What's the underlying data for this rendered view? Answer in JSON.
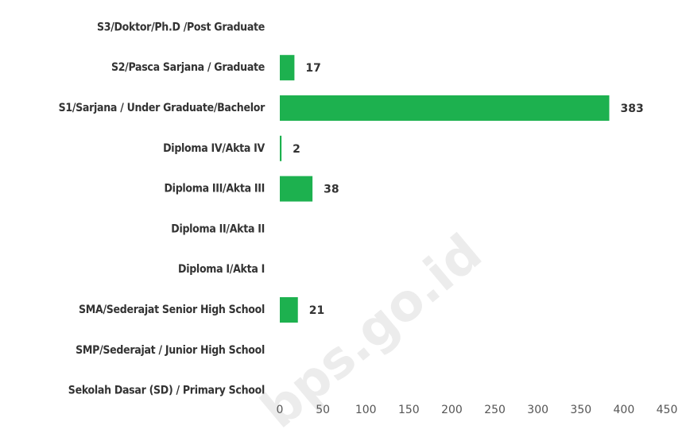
{
  "chart_data": {
    "type": "barh",
    "categories": [
      "S3/Doktor/Ph.D /Post Graduate",
      "S2/Pasca Sarjana / Graduate",
      "S1/Sarjana / Under Graduate/Bachelor",
      "Diploma IV/Akta IV",
      "Diploma III/Akta III",
      "Diploma II/Akta II",
      "Diploma I/Akta I",
      "SMA/Sederajat Senior High School",
      "SMP/Sederajat /  Junior High School",
      "Sekolah Dasar (SD) / Primary School"
    ],
    "values": [
      0,
      17,
      383,
      2,
      38,
      0,
      0,
      21,
      0,
      0
    ],
    "color": "#1db14f",
    "xlim": [
      0,
      450
    ],
    "xticks": [
      0,
      50,
      100,
      150,
      200,
      250,
      300,
      350,
      400,
      450
    ],
    "grid": false,
    "watermark": "bps.go.id"
  }
}
